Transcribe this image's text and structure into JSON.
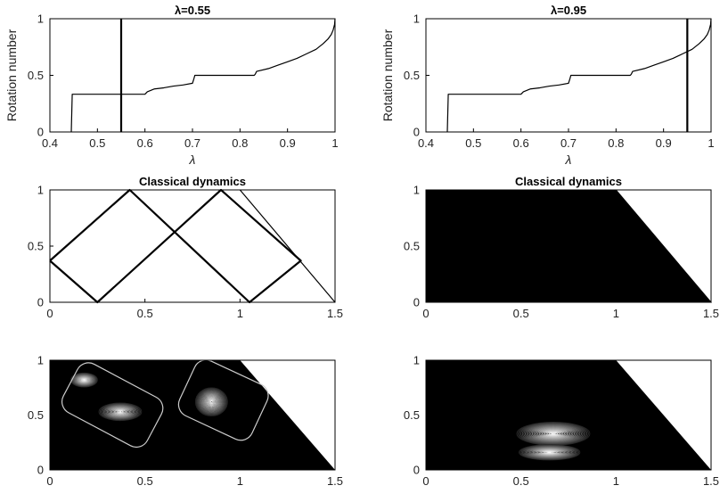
{
  "chart_data": [
    {
      "type": "line",
      "title": "λ=0.55",
      "xlabel": "λ",
      "ylabel": "Rotation number",
      "xlim": [
        0.4,
        1.0
      ],
      "ylim": [
        0,
        1
      ],
      "xticks": [
        "0.4",
        "0.5",
        "0.6",
        "0.7",
        "0.8",
        "0.9",
        "1"
      ],
      "yticks": [
        "0",
        "0.5",
        "1"
      ],
      "grid": false,
      "marker_line_x": 0.55,
      "series": [
        {
          "x": [
            0.445,
            0.446,
            0.447,
            0.6,
            0.605,
            0.62,
            0.64,
            0.66,
            0.68,
            0.7,
            0.703,
            0.705,
            0.83,
            0.832,
            0.835,
            0.86,
            0.88,
            0.9,
            0.92,
            0.94,
            0.96,
            0.975,
            0.985,
            0.992,
            0.996,
            0.999,
            1.0
          ],
          "y": [
            0,
            0.167,
            0.333,
            0.333,
            0.355,
            0.38,
            0.39,
            0.405,
            0.415,
            0.43,
            0.47,
            0.5,
            0.5,
            0.51,
            0.535,
            0.56,
            0.59,
            0.62,
            0.65,
            0.69,
            0.73,
            0.78,
            0.82,
            0.86,
            0.9,
            0.95,
            1.0
          ]
        }
      ]
    },
    {
      "type": "line",
      "title": "λ=0.95",
      "xlabel": "λ",
      "ylabel": "Rotation number",
      "xlim": [
        0.4,
        1.0
      ],
      "ylim": [
        0,
        1
      ],
      "xticks": [
        "0.4",
        "0.5",
        "0.6",
        "0.7",
        "0.8",
        "0.9",
        "1"
      ],
      "yticks": [
        "0",
        "0.5",
        "1"
      ],
      "grid": false,
      "marker_line_x": 0.95,
      "series": [
        {
          "x": [
            0.445,
            0.446,
            0.447,
            0.6,
            0.605,
            0.62,
            0.64,
            0.66,
            0.68,
            0.7,
            0.703,
            0.705,
            0.83,
            0.832,
            0.835,
            0.86,
            0.88,
            0.9,
            0.92,
            0.94,
            0.96,
            0.975,
            0.985,
            0.992,
            0.996,
            0.999,
            1.0
          ],
          "y": [
            0,
            0.167,
            0.333,
            0.333,
            0.355,
            0.38,
            0.39,
            0.405,
            0.415,
            0.43,
            0.47,
            0.5,
            0.5,
            0.51,
            0.535,
            0.56,
            0.59,
            0.62,
            0.65,
            0.69,
            0.73,
            0.78,
            0.82,
            0.86,
            0.9,
            0.95,
            1.0
          ]
        }
      ]
    },
    {
      "type": "line",
      "title": "Classical dynamics",
      "xlim": [
        0,
        1.5
      ],
      "ylim": [
        0,
        1
      ],
      "xticks": [
        "0",
        "0.5",
        "1",
        "1.5"
      ],
      "yticks": [
        "0",
        "0.5",
        "1"
      ],
      "grid": false,
      "domain_boundary": [
        [
          1.0,
          1.0
        ],
        [
          1.5,
          0.0
        ]
      ],
      "series": [
        {
          "x": [
            0.0,
            0.42,
            1.05,
            1.32,
            0.9,
            0.25,
            0.0
          ],
          "y": [
            0.37,
            1.0,
            0.0,
            0.37,
            1.0,
            0.0,
            0.37
          ]
        }
      ]
    },
    {
      "type": "area",
      "title": "Classical dynamics",
      "xlim": [
        0,
        1.5
      ],
      "ylim": [
        0,
        1
      ],
      "xticks": [
        "0",
        "0.5",
        "1",
        "1.5"
      ],
      "yticks": [
        "0",
        "0.5",
        "1"
      ],
      "grid": false,
      "series": [
        {
          "x": [
            0.0,
            0.0,
            1.0,
            1.5
          ],
          "y": [
            0.0,
            1.0,
            1.0,
            0.0
          ]
        }
      ]
    },
    {
      "type": "heatmap",
      "xlim": [
        0,
        1.5
      ],
      "ylim": [
        0,
        1
      ],
      "xticks": [
        "0",
        "0.5",
        "1",
        "1.5"
      ],
      "yticks": [
        "0",
        "0.5",
        "1"
      ],
      "grid": false,
      "domain": {
        "x": [
          0.0,
          0.0,
          1.0,
          1.5
        ],
        "y": [
          0.0,
          1.0,
          1.0,
          0.0
        ]
      },
      "contour_centers": [
        {
          "x": 0.37,
          "y": 0.53,
          "rx": 0.08,
          "ry": 0.05
        },
        {
          "x": 0.85,
          "y": 0.62,
          "rx": 0.06,
          "ry": 0.08
        },
        {
          "x": 0.18,
          "y": 0.82,
          "rx": 0.05,
          "ry": 0.04
        }
      ]
    },
    {
      "type": "heatmap",
      "xlim": [
        0,
        1.5
      ],
      "ylim": [
        0,
        1
      ],
      "xticks": [
        "0",
        "0.5",
        "1",
        "1.5"
      ],
      "yticks": [
        "0",
        "0.5",
        "1"
      ],
      "grid": false,
      "domain": {
        "x": [
          0.0,
          0.0,
          1.0,
          1.5
        ],
        "y": [
          0.0,
          1.0,
          1.0,
          0.0
        ]
      },
      "contour_centers": [
        {
          "x": 0.67,
          "y": 0.33,
          "rx": 0.06,
          "ry": 0.03
        },
        {
          "x": 0.65,
          "y": 0.16,
          "rx": 0.05,
          "ry": 0.02
        }
      ]
    }
  ]
}
